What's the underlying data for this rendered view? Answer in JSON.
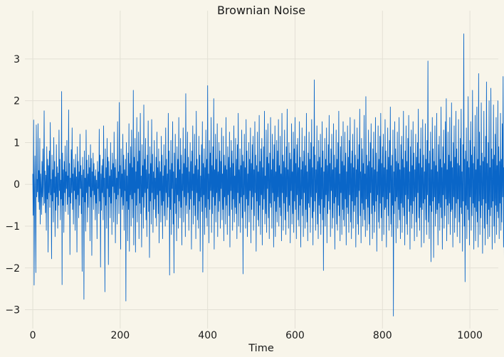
{
  "chart_data": {
    "type": "line",
    "title": "Brownian Noise",
    "xlabel": "Time",
    "ylabel": "",
    "xlim": [
      -18,
      1065
    ],
    "ylim": [
      -3.45,
      3.9
    ],
    "x_ticks": [
      0,
      200,
      400,
      600,
      800,
      1000
    ],
    "x_tick_labels": [
      "0",
      "200",
      "400",
      "600",
      "800",
      "1000"
    ],
    "y_ticks": [
      3,
      2,
      1,
      0,
      -1,
      -2,
      -3
    ],
    "y_tick_labels": [
      "3",
      "2",
      "1",
      "0",
      "−1",
      "−2",
      "−3"
    ],
    "grid": true,
    "legend": "none",
    "colors": {
      "background": "#f8f5ea",
      "grid": "#e3e0d5",
      "line": "#0a66c8",
      "text": "#1a1a1a"
    },
    "series": [
      {
        "x_start": 0,
        "x_step": 1,
        "values": [
          0.25,
          -0.74,
          1.54,
          -2.41,
          -0.2,
          0.68,
          -0.55,
          -2.11,
          1.42,
          -0.3,
          0.12,
          -0.18,
          1.45,
          -0.42,
          0.33,
          -0.6,
          1.1,
          -0.95,
          0.25,
          -0.1,
          -0.72,
          0.55,
          -0.3,
          0.85,
          -0.5,
          0.15,
          1.76,
          -0.45,
          0.32,
          -0.68,
          0.22,
          -1.1,
          0.9,
          -0.35,
          0.6,
          -1.62,
          0.45,
          -0.2,
          0.8,
          -0.55,
          1.48,
          -0.25,
          0.12,
          -1.78,
          0.7,
          -0.4,
          0.35,
          -0.9,
          1.12,
          -0.2,
          0.55,
          -1.25,
          0.18,
          -0.62,
          0.95,
          -0.3,
          0.42,
          -1.05,
          0.27,
          -0.5,
          1.3,
          -0.15,
          0.6,
          -0.85,
          0.1,
          -0.35,
          2.22,
          -2.4,
          0.75,
          -0.5,
          0.35,
          -1.15,
          0.55,
          -0.2,
          0.92,
          -0.65,
          0.3,
          -0.1,
          1.05,
          -0.48,
          0.2,
          -0.72,
          1.78,
          -0.3,
          0.5,
          -1.68,
          0.15,
          -0.45,
          0.83,
          -0.2,
          1.35,
          -0.6,
          0.25,
          -0.95,
          0.6,
          -0.15,
          0.4,
          -1.1,
          0.72,
          -0.35,
          0.18,
          -1.62,
          0.9,
          -0.25,
          0.55,
          -0.8,
          0.3,
          -0.5,
          1.2,
          -0.1,
          0.45,
          -0.7,
          0.22,
          -2.08,
          0.65,
          -0.3,
          0.35,
          -2.75,
          0.8,
          -0.42,
          0.15,
          -1.12,
          1.3,
          -0.2,
          0.58,
          -0.9,
          0.25,
          -0.55,
          0.7,
          -0.05,
          0.4,
          -1.35,
          0.95,
          -0.3,
          0.62,
          -1.7,
          0.3,
          -0.15,
          0.75,
          -0.6,
          0.5,
          -0.25,
          0.2,
          -0.85,
          0.35,
          -0.45,
          0.1,
          -1.3,
          0.55,
          -0.1,
          0.3,
          -0.7,
          1.32,
          -0.4,
          0.7,
          -1.98,
          0.25,
          -0.62,
          0.45,
          -0.2,
          0.6,
          -0.85,
          1.4,
          -0.3,
          0.15,
          -2.57,
          0.85,
          -0.5,
          0.4,
          -1.05,
          1.1,
          -0.1,
          0.65,
          -1.92,
          0.55,
          -0.3,
          0.2,
          -0.8,
          1.0,
          -0.45,
          0.35,
          -1.2,
          0.75,
          -0.05,
          0.5,
          -0.9,
          1.25,
          -0.2,
          0.4,
          -1.4,
          0.6,
          -0.35,
          0.15,
          -0.95,
          1.5,
          -0.25,
          0.3,
          -0.7,
          1.96,
          -0.1,
          0.45,
          -1.55,
          0.85,
          -0.3,
          0.25,
          -0.6,
          1.2,
          -0.5,
          0.7,
          -1.1,
          0.35,
          -0.15,
          0.6,
          -2.79,
          1.0,
          -0.4,
          0.2,
          -1.35,
          0.75,
          -0.6,
          1.45,
          -1.6,
          0.5,
          -0.25,
          0.9,
          -1.0,
          1.3,
          -0.35,
          0.4,
          -0.8,
          2.25,
          -1.45,
          0.65,
          -0.2,
          1.1,
          -1.62,
          0.3,
          -0.5,
          1.6,
          -0.9,
          0.55,
          -0.1,
          1.25,
          -1.3,
          0.8,
          -0.45,
          1.7,
          -0.7,
          0.2,
          -1.5,
          0.95,
          -0.3,
          0.45,
          -1.05,
          1.9,
          -0.55,
          0.6,
          -0.2,
          1.1,
          -0.85,
          0.35,
          -1.25,
          0.7,
          -0.1,
          1.52,
          -0.65,
          0.25,
          -1.75,
          0.9,
          -0.4,
          0.5,
          -0.95,
          1.55,
          -0.2,
          0.72,
          -1.15,
          0.3,
          -0.6,
          1.05,
          -0.35,
          0.15,
          -0.8,
          0.65,
          -1.0,
          1.25,
          -0.25,
          0.4,
          -0.7,
          0.85,
          -1.4,
          0.55,
          -0.15,
          0.3,
          -0.9,
          1.15,
          -0.5,
          0.7,
          -1.3,
          0.2,
          -0.4,
          0.95,
          -0.75,
          0.45,
          -1.0,
          1.35,
          -0.2,
          0.6,
          -0.85,
          0.25,
          -0.55,
          1.7,
          -0.3,
          0.8,
          -2.17,
          0.35,
          -0.6,
          1.05,
          -1.2,
          0.5,
          -0.1,
          1.5,
          -0.95,
          0.3,
          -2.12,
          0.75,
          -0.45,
          1.2,
          -0.7,
          0.15,
          -1.35,
          0.9,
          -0.25,
          0.6,
          -1.05,
          1.6,
          -0.4,
          0.35,
          -0.8,
          1.1,
          -0.55,
          0.7,
          -1.45,
          0.25,
          -0.15,
          1.35,
          -0.9,
          0.5,
          -0.3,
          0.85,
          -1.25,
          2.17,
          -0.5,
          0.4,
          -0.7,
          1.25,
          -0.2,
          0.65,
          -1.1,
          0.3,
          -0.6,
          1.0,
          -0.35,
          0.55,
          -1.55,
          0.8,
          -0.15,
          1.4,
          -0.95,
          0.25,
          -0.5,
          1.2,
          -0.75,
          0.45,
          -1.3,
          1.75,
          -0.2,
          0.6,
          -0.85,
          0.35,
          -1.05,
          1.15,
          -0.4,
          0.7,
          -1.6,
          0.2,
          -0.3,
          0.95,
          -0.65,
          1.5,
          -2.1,
          0.5,
          -0.25,
          0.85,
          -1.2,
          0.4,
          -0.55,
          1.3,
          -0.8,
          0.6,
          -1.0,
          2.36,
          -0.35,
          0.25,
          -1.4,
          1.05,
          -0.6,
          0.75,
          -0.15,
          1.6,
          -1.15,
          0.45,
          -0.7,
          0.9,
          -0.3,
          2.05,
          -1.55,
          0.35,
          -0.5,
          1.2,
          -0.9,
          0.6,
          -0.2,
          1.45,
          -1.25,
          0.3,
          -0.65,
          1.0,
          -0.4,
          0.8,
          -1.05,
          0.55,
          -0.1,
          1.35,
          -0.85,
          0.25,
          -0.6,
          1.15,
          -1.35,
          0.7,
          -0.3,
          0.45,
          -0.95,
          1.6,
          -0.5,
          0.35,
          -1.2,
          0.9,
          -0.25,
          0.65,
          -0.75,
          1.25,
          -1.5,
          0.4,
          -0.15,
          1.05,
          -0.6,
          0.8,
          -1.1,
          0.5,
          -0.35,
          1.4,
          -0.9,
          0.2,
          -0.55,
          1.1,
          -0.7,
          0.6,
          -1.3,
          0.95,
          -0.2,
          1.7,
          -1.0,
          0.35,
          -0.45,
          0.85,
          -1.15,
          0.45,
          -0.3,
          1.3,
          -0.8,
          0.7,
          -2.14,
          0.55,
          -0.25,
          1.2,
          -0.65,
          0.4,
          -1.05,
          1.55,
          -0.35,
          0.8,
          -1.25,
          0.25,
          -0.5,
          1.0,
          -0.9,
          0.6,
          -0.15,
          1.35,
          -1.4,
          0.5,
          -0.6,
          0.95,
          -0.3,
          1.15,
          -1.1,
          0.35,
          -0.75,
          1.5,
          -0.2,
          0.7,
          -1.6,
          0.45,
          -0.4,
          1.25,
          -0.85,
          0.3,
          -1.0,
          1.65,
          -0.5,
          0.55,
          -1.2,
          0.85,
          -0.25,
          1.1,
          -1.45,
          0.4,
          -0.6,
          0.9,
          -0.35,
          1.75,
          -0.95,
          0.2,
          -0.7,
          1.3,
          -1.15,
          0.65,
          -0.1,
          1.45,
          -0.8,
          0.5,
          -1.3,
          0.75,
          -0.45,
          1.6,
          -0.55,
          0.35,
          -1.05,
          1.2,
          -0.2,
          0.6,
          -1.5,
          0.95,
          -0.4,
          1.4,
          -1.25,
          0.3,
          -0.65,
          1.05,
          -0.9,
          0.8,
          -0.3,
          1.55,
          -1.0,
          0.45,
          -0.55,
          1.15,
          -0.75,
          0.25,
          -1.35,
          1.7,
          -0.2,
          0.7,
          -1.1,
          0.55,
          -0.45,
          1.3,
          -0.85,
          0.4,
          -1.2,
          0.9,
          -0.3,
          1.8,
          -0.65,
          0.35,
          -1.05,
          1.0,
          -0.5,
          0.75,
          -1.4,
          0.6,
          -0.15,
          1.45,
          -0.95,
          0.3,
          -0.7,
          1.25,
          -1.15,
          0.85,
          -0.4,
          1.6,
          -0.6,
          0.5,
          -1.3,
          0.95,
          -0.25,
          1.1,
          -0.85,
          0.4,
          -1.0,
          1.5,
          -0.5,
          0.65,
          -1.5,
          0.35,
          -0.35,
          1.35,
          -0.75,
          0.55,
          -1.25,
          0.8,
          -0.2,
          1.15,
          -1.05,
          0.45,
          -0.6,
          1.7,
          -0.9,
          0.3,
          -1.35,
          0.75,
          -0.45,
          1.25,
          -0.55,
          0.6,
          -1.15,
          1.0,
          -0.3,
          1.55,
          -0.8,
          0.4,
          -1.45,
          0.9,
          -0.65,
          2.5,
          -0.4,
          0.7,
          -1.1,
          0.35,
          -0.2,
          1.4,
          -0.95,
          0.55,
          -1.3,
          1.05,
          -0.5,
          0.65,
          -0.7,
          1.2,
          -1.2,
          0.4,
          -0.35,
          1.5,
          -0.85,
          0.8,
          -2.06,
          0.3,
          -0.55,
          1.1,
          -1.0,
          0.6,
          -0.25,
          1.35,
          -1.4,
          0.45,
          -0.7,
          0.95,
          -0.4,
          1.65,
          -0.6,
          0.5,
          -1.25,
          0.85,
          -0.15,
          1.2,
          -1.05,
          0.35,
          -0.8,
          1.45,
          -0.45,
          0.7,
          -1.55,
          0.4,
          -0.3,
          1.3,
          -0.95,
          0.6,
          -1.1,
          1.0,
          -0.5,
          1.75,
          -0.75,
          0.25,
          -1.35,
          0.9,
          -0.2,
          1.15,
          -1.2,
          0.55,
          -0.6,
          1.5,
          -0.85,
          0.45,
          -1.0,
          1.25,
          -0.35,
          0.75,
          -1.45,
          0.3,
          -0.55,
          1.4,
          -0.7,
          0.65,
          -1.15,
          1.05,
          -0.25,
          1.6,
          -0.9,
          0.5,
          -1.3,
          0.8,
          -0.4,
          1.2,
          -1.05,
          0.4,
          -0.65,
          1.55,
          -0.5,
          0.7,
          -1.5,
          0.35,
          -0.3,
          1.35,
          -0.95,
          0.6,
          -1.2,
          0.95,
          -0.15,
          1.8,
          -0.75,
          0.3,
          -1.4,
          1.1,
          -0.45,
          0.85,
          -1.0,
          0.5,
          -0.6,
          1.65,
          -0.85,
          0.25,
          -1.25,
          2.1,
          -0.35,
          0.7,
          -1.1,
          0.45,
          -0.55,
          1.3,
          -0.95,
          0.55,
          -1.45,
          1.0,
          -0.2,
          1.45,
          -0.7,
          0.4,
          -1.3,
          0.85,
          -0.5,
          1.25,
          -1.15,
          0.35,
          -0.65,
          1.6,
          -0.4,
          0.75,
          -1.6,
          0.3,
          -0.25,
          1.4,
          -0.9,
          0.6,
          -1.05,
          1.15,
          -0.45,
          1.7,
          -0.8,
          0.5,
          -1.35,
          0.9,
          -0.3,
          1.2,
          -1.2,
          0.4,
          -0.6,
          1.55,
          -0.55,
          0.8,
          -1.5,
          0.35,
          -0.35,
          1.35,
          -0.75,
          0.65,
          -1.1,
          1.05,
          -0.2,
          1.85,
          -0.95,
          0.45,
          -1.25,
          0.7,
          -0.5,
          1.3,
          -3.15,
          0.3,
          -0.7,
          1.5,
          -0.4,
          0.85,
          -1.4,
          0.55,
          -0.3,
          1.25,
          -1.05,
          0.5,
          -0.6,
          1.6,
          -0.85,
          0.35,
          -1.3,
          0.95,
          -0.45,
          1.15,
          -1.15,
          0.6,
          -0.55,
          1.75,
          -0.75,
          0.4,
          -1.45,
          0.8,
          -0.25,
          1.4,
          -0.95,
          0.55,
          -1.2,
          1.1,
          -0.35,
          1.65,
          -0.65,
          0.3,
          -1.55,
          0.9,
          -0.5,
          1.3,
          -1.05,
          0.45,
          -0.7,
          1.5,
          -0.4,
          0.75,
          -1.35,
          0.35,
          -0.3,
          1.2,
          -0.9,
          0.65,
          -1.25,
          1.0,
          -0.2,
          1.8,
          -0.8,
          0.5,
          -1.1,
          0.85,
          -0.55,
          1.35,
          -1.5,
          0.4,
          -0.6,
          1.55,
          -0.45,
          0.7,
          -1.4,
          0.3,
          -0.35,
          1.45,
          -0.85,
          0.6,
          -1.2,
          1.05,
          -0.25,
          2.95,
          -0.9,
          0.5,
          -1.3,
          0.8,
          -0.5,
          1.25,
          -1.85,
          0.35,
          -0.65,
          1.6,
          -0.4,
          0.85,
          -1.75,
          0.55,
          -0.3,
          1.4,
          -1.0,
          0.45,
          -0.7,
          1.7,
          -0.6,
          0.3,
          -1.45,
          0.95,
          -0.45,
          1.15,
          -1.1,
          0.6,
          -0.55,
          1.85,
          -0.8,
          0.4,
          -1.55,
          0.9,
          -0.25,
          1.3,
          -1.05,
          0.5,
          -0.75,
          1.5,
          -0.35,
          2.05,
          -1.35,
          0.35,
          -0.5,
          1.25,
          -0.95,
          0.7,
          -0.45,
          1.6,
          -1.2,
          0.55,
          -0.65,
          1.95,
          -0.6,
          0.4,
          -1.5,
          1.0,
          -0.3,
          1.4,
          -1.15,
          0.65,
          -0.8,
          1.75,
          -0.45,
          0.85,
          -1.25,
          0.5,
          -0.35,
          1.55,
          -0.9,
          0.45,
          -1.4,
          1.1,
          -0.55,
          1.8,
          -0.7,
          0.3,
          -1.6,
          0.95,
          -0.4,
          3.6,
          -1.0,
          0.6,
          -2.33,
          0.8,
          -0.5,
          1.35,
          -1.3,
          0.55,
          -0.6,
          2.1,
          -0.85,
          0.4,
          -1.45,
          1.05,
          -0.3,
          1.5,
          -1.1,
          0.7,
          -0.75,
          2.25,
          -0.45,
          0.5,
          -1.55,
          0.9,
          -0.55,
          1.65,
          -1.35,
          0.35,
          -0.65,
          1.85,
          -0.9,
          0.6,
          -1.5,
          2.65,
          -0.4,
          1.25,
          -1.2,
          0.45,
          -0.8,
          1.95,
          -0.5,
          0.75,
          -1.65,
          0.55,
          -0.35,
          1.75,
          -1.05,
          0.65,
          -1.45,
          1.15,
          -0.45,
          2.45,
          -0.95,
          0.5,
          -1.3,
          1.0,
          -0.6,
          2.0,
          -1.25,
          0.4,
          -0.75,
          2.3,
          -0.55,
          0.85,
          -1.55,
          0.6,
          -0.4,
          1.9,
          -1.0,
          0.7,
          -1.4,
          1.2,
          -0.5,
          1.6,
          -1.2,
          0.45,
          -0.65,
          2.0,
          -0.8,
          0.9,
          -1.3,
          0.55,
          -0.45,
          1.7,
          -1.1,
          0.6,
          -0.9,
          1.45,
          -0.3,
          2.58,
          -1.5,
          0.4,
          -2.45,
          1.1,
          -0.55,
          1.35,
          -0.95,
          0.8,
          -0.25,
          1.58,
          0.2,
          -0.05,
          0.8,
          1.55,
          -0.3
        ]
      }
    ]
  }
}
